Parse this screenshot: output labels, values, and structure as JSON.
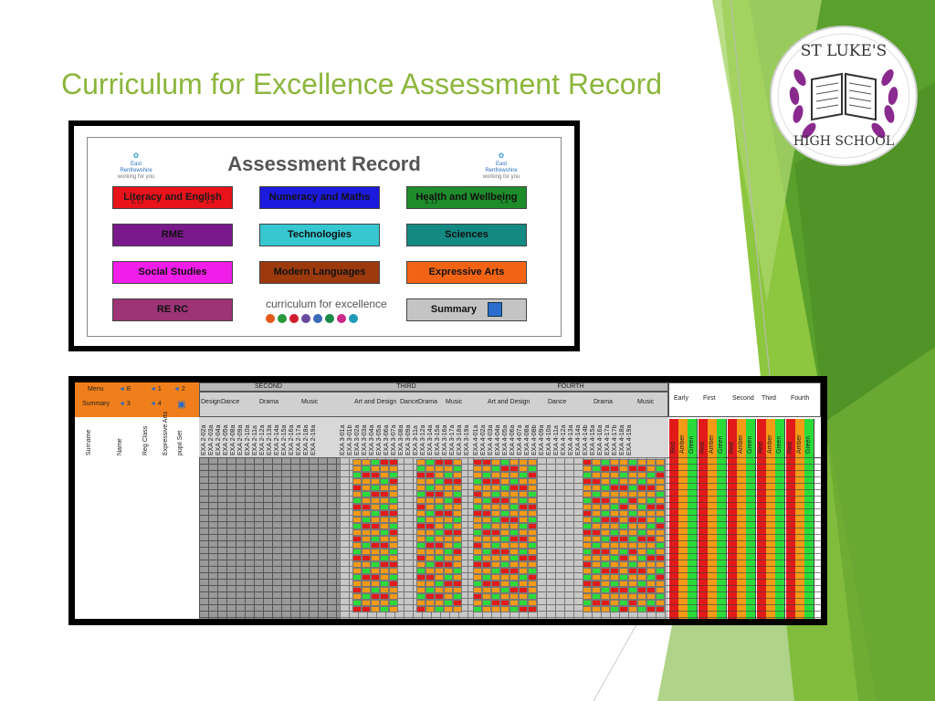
{
  "slide": {
    "title": "Curriculum for Excellence Assessment Record",
    "colors": {
      "title": "#8cb63c",
      "accent_green": "#76b82a",
      "dark_green": "#3f8f1f"
    }
  },
  "logo": {
    "top_text": "ST LUKE'S",
    "bottom_text": "HIGH SCHOOL",
    "icon": "open-book-laurel-icon",
    "colors": {
      "ring": "#8a2a8e",
      "bg": "#ffffff"
    }
  },
  "menu": {
    "title": "Assessment Record",
    "council_logo_text": "East Renfrewshire",
    "council_logo_subtext": "working for you",
    "buttons": [
      {
        "label": "Literacy and English",
        "color": "#e8121a",
        "text_color": "#1a1a1a",
        "sub_left": "E, 1,2",
        "sub_right": "3, 4"
      },
      {
        "label": "Numeracy and Maths",
        "color": "#1c1adc",
        "text_color": "#111",
        "sub_left": "",
        "sub_right": ""
      },
      {
        "label": "Health and Wellbeing",
        "color": "#1e8c2a",
        "text_color": "#111",
        "sub_left": "E, 1,2",
        "sub_right": "3, 4"
      },
      {
        "label": "RME",
        "color": "#7a198c",
        "text_color": "#111",
        "sub_left": "",
        "sub_right": ""
      },
      {
        "label": "Technologies",
        "color": "#36c7d0",
        "text_color": "#111",
        "sub_left": "",
        "sub_right": ""
      },
      {
        "label": "Sciences",
        "color": "#128a82",
        "text_color": "#111",
        "sub_left": "",
        "sub_right": ""
      },
      {
        "label": "Social Studies",
        "color": "#f01ee8",
        "text_color": "#111",
        "sub_left": "",
        "sub_right": ""
      },
      {
        "label": "Modern Languages",
        "color": "#9c3a0e",
        "text_color": "#111",
        "sub_left": "",
        "sub_right": ""
      },
      {
        "label": "Expressive Arts",
        "color": "#f26414",
        "text_color": "#111",
        "sub_left": "",
        "sub_right": ""
      },
      {
        "label": "RE RC",
        "color": "#9c3475",
        "text_color": "#111",
        "sub_left": "",
        "sub_right": ""
      },
      {
        "label": "Summary",
        "color": "#c4c4c4",
        "text_color": "#111",
        "sub_left": "",
        "sub_right": ""
      }
    ],
    "cfe_text": "curriculum for excellence",
    "cfe_dot_colors": [
      "#e05a1c",
      "#2a9a3c",
      "#d01e2e",
      "#6a4aa0",
      "#3a6ab6",
      "#1a8a4a",
      "#cc2a8a",
      "#1e9ab6"
    ],
    "summary_icon": "save-disk-icon"
  },
  "sheet": {
    "nav": {
      "menu": "Menu",
      "summary": "Summary",
      "n1": "E",
      "n2": "1",
      "n3": "2",
      "n4": "3",
      "n5": "4"
    },
    "stages": [
      "SECOND",
      "THIRD",
      "FOURTH"
    ],
    "second_groups": [
      "Design",
      "Dance",
      "Drama",
      "Music"
    ],
    "third_groups": [
      "Art and Design",
      "Dance",
      "Drama",
      "Music"
    ],
    "fourth_groups": [
      "Art and Design",
      "Dance",
      "Drama",
      "Music"
    ],
    "summary_levels": [
      "Early",
      "First",
      "Second",
      "Third",
      "Fourth"
    ],
    "rag_labels": [
      "Red",
      "Amber",
      "Green"
    ],
    "student_headers": [
      "Surname",
      "Name",
      "Reg Class",
      "Expressive Arts",
      "pupil Set"
    ],
    "second_outcomes": [
      "EXA 2-02a",
      "EXA 2-03a",
      "EXA 2-04a",
      "EXA 2-05a",
      "EXA 2-08a",
      "EXA 2-09a",
      "EXA 2-10a",
      "EXA 2-11a",
      "EXA 2-12a",
      "EXA 2-13a",
      "EXA 2-14a",
      "EXA 2-15a",
      "EXA 2-16a",
      "EXA 2-17a",
      "EXA 2-18a",
      "EXA 2-19a"
    ],
    "third_outcomes": [
      "EXA 3-01a",
      "EXA 3-01b",
      "EXA 3-02a",
      "EXA 3-03a",
      "EXA 3-04a",
      "EXA 3-05a",
      "EXA 3-06a",
      "EXA 3-07a",
      "EXA 3-08a",
      "EXA 3-09a",
      "EXA 3-11a",
      "EXA 3-12a",
      "EXA 3-14a",
      "EXA 3-15a",
      "EXA 3-16a",
      "EXA 3-17a",
      "EXA 3-18a",
      "EXA 3-19a"
    ],
    "fourth_outcomes": [
      "EXA 4-01a",
      "EXA 4-02a",
      "EXA 4-03a",
      "EXA 4-04a",
      "EXA 4-05a",
      "EXA 4-06a",
      "EXA 4-07a",
      "EXA 4-08a",
      "EXA 4-08b",
      "EXA 4-09a",
      "EXA 4-10a",
      "EXA 4-11a",
      "EXA 4-12a",
      "EXA 4-13a",
      "EXA 4-14a",
      "EXA 4-14b",
      "EXA 4-15a",
      "EXA 4-16a",
      "EXA 4-17a",
      "EXA 4-17b",
      "EXA 4-18a",
      "EXA 4-19a"
    ],
    "rag_colors": {
      "red": "#e21a1a",
      "amber": "#f39a16",
      "green": "#2bdb3a",
      "grey": "#9a9a9a"
    }
  }
}
